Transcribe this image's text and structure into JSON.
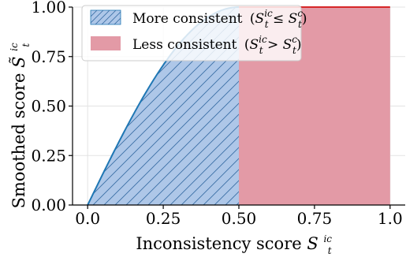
{
  "chart_data": {
    "type": "area",
    "xlabel": "Inconsistency score",
    "xlabel_symbol": "S",
    "xlabel_sup": "ic",
    "xlabel_sub": "t",
    "ylabel": "Smoothed score",
    "ylabel_symbol": "S̃",
    "ylabel_sup": "ic",
    "ylabel_sub": "t",
    "xlim": [
      -0.05,
      1.05
    ],
    "ylim": [
      0.0,
      1.0
    ],
    "xticks": [
      "0.0",
      "0.25",
      "0.50",
      "0.75",
      "1.0"
    ],
    "xtick_values": [
      0.0,
      0.25,
      0.5,
      0.75,
      1.0
    ],
    "yticks": [
      "0.00",
      "0.25",
      "0.50",
      "0.75",
      "1.00"
    ],
    "ytick_values": [
      0.0,
      0.25,
      0.5,
      0.75,
      1.0
    ],
    "grid": true,
    "legend_placement": "top-left",
    "series": [
      {
        "name": "More consistent",
        "label_math": "(S^{ic}_t ≤ S^{c}_t)",
        "region": [
          0.0,
          0.5
        ],
        "function": "sin(pi*x)",
        "fill": "#aec7e8",
        "edge": "#1f77b4",
        "hatch": "//",
        "x": [
          0.0,
          0.05,
          0.1,
          0.15,
          0.2,
          0.25,
          0.3,
          0.35,
          0.4,
          0.45,
          0.5
        ],
        "y": [
          0.0,
          0.156,
          0.309,
          0.454,
          0.588,
          0.707,
          0.809,
          0.891,
          0.951,
          0.988,
          1.0
        ]
      },
      {
        "name": "Less consistent",
        "label_math": "(S^{ic}_t > S^{c}_t)",
        "region": [
          0.5,
          1.0
        ],
        "value": 1.0,
        "fill": "#e39aa6",
        "edge": "#d62728",
        "x": [
          0.5,
          1.0
        ],
        "y": [
          1.0,
          1.0
        ]
      }
    ]
  }
}
